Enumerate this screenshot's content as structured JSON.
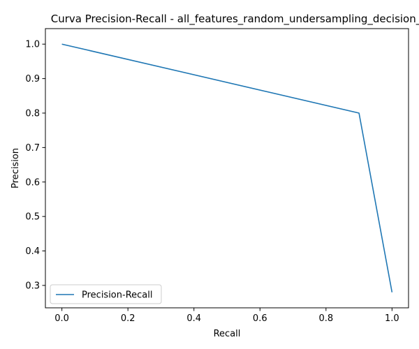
{
  "chart_data": {
    "type": "line",
    "title": "Curva Precision-Recall - all_features_random_undersampling_decision_",
    "xlabel": "Recall",
    "ylabel": "Precision",
    "xlim": [
      -0.05,
      1.05
    ],
    "ylim": [
      0.235,
      1.045
    ],
    "xticks": [
      0.0,
      0.2,
      0.4,
      0.6,
      0.8,
      1.0
    ],
    "xtick_labels": [
      "0.0",
      "0.2",
      "0.4",
      "0.6",
      "0.8",
      "1.0"
    ],
    "yticks": [
      0.3,
      0.4,
      0.5,
      0.6,
      0.7,
      0.8,
      0.9,
      1.0
    ],
    "ytick_labels": [
      "0.3",
      "0.4",
      "0.5",
      "0.6",
      "0.7",
      "0.8",
      "0.9",
      "1.0"
    ],
    "grid": false,
    "legend_position": "lower-left",
    "series": [
      {
        "name": "Precision-Recall",
        "color": "#1f77b4",
        "x": [
          0.0,
          0.9,
          1.0
        ],
        "y": [
          1.0,
          0.8,
          0.28
        ]
      }
    ]
  }
}
